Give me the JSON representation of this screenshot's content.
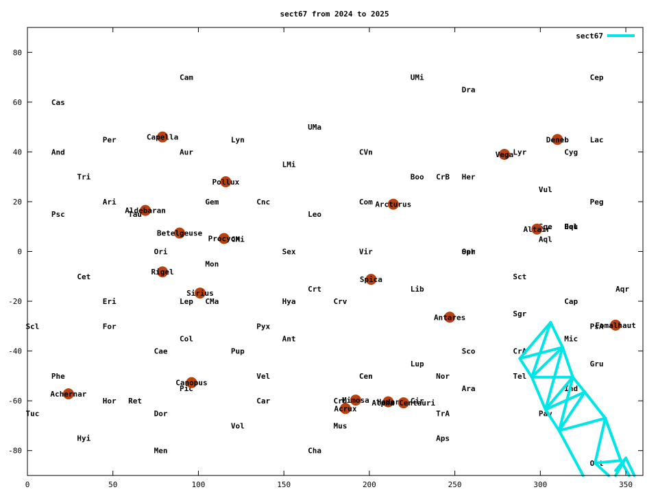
{
  "chart_data": {
    "type": "scatter",
    "title": "sect67 from 2024 to 2025",
    "xlabel": "",
    "ylabel": "",
    "xlim": [
      0,
      360
    ],
    "ylim": [
      -90,
      90
    ],
    "xticks": [
      0,
      50,
      100,
      150,
      200,
      250,
      300,
      350
    ],
    "yticks": [
      -80,
      -60,
      -40,
      -20,
      0,
      20,
      40,
      60,
      80
    ],
    "grid": false,
    "legend_position": "top-right",
    "colors": {
      "stars": "#b8410f",
      "series": "#00e5e5",
      "text": "#000000",
      "axes": "#000000"
    },
    "constellations": [
      {
        "label": "Cam",
        "x": 89,
        "y": 70
      },
      {
        "label": "UMi",
        "x": 224,
        "y": 70
      },
      {
        "label": "Cep",
        "x": 329,
        "y": 70
      },
      {
        "label": "Dra",
        "x": 254,
        "y": 65
      },
      {
        "label": "Cas",
        "x": 14,
        "y": 60
      },
      {
        "label": "UMa",
        "x": 164,
        "y": 50
      },
      {
        "label": "Per",
        "x": 44,
        "y": 45
      },
      {
        "label": "Lyn",
        "x": 119,
        "y": 45
      },
      {
        "label": "Lac",
        "x": 329,
        "y": 45
      },
      {
        "label": "And",
        "x": 14,
        "y": 40
      },
      {
        "label": "Aur",
        "x": 89,
        "y": 40
      },
      {
        "label": "CVn",
        "x": 194,
        "y": 40
      },
      {
        "label": "Lyr",
        "x": 284,
        "y": 40
      },
      {
        "label": "Cyg",
        "x": 314,
        "y": 40
      },
      {
        "label": "LMi",
        "x": 149,
        "y": 35
      },
      {
        "label": "Tri",
        "x": 29,
        "y": 30
      },
      {
        "label": "Boo",
        "x": 224,
        "y": 30
      },
      {
        "label": "CrB",
        "x": 239,
        "y": 30
      },
      {
        "label": "Her",
        "x": 254,
        "y": 30
      },
      {
        "label": "Vul",
        "x": 299,
        "y": 25
      },
      {
        "label": "Ari",
        "x": 44,
        "y": 20
      },
      {
        "label": "Gem",
        "x": 104,
        "y": 20
      },
      {
        "label": "Cnc",
        "x": 134,
        "y": 20
      },
      {
        "label": "Com",
        "x": 194,
        "y": 20
      },
      {
        "label": "Peg",
        "x": 329,
        "y": 20
      },
      {
        "label": "Psc",
        "x": 14,
        "y": 15
      },
      {
        "label": "Tau",
        "x": 59,
        "y": 15
      },
      {
        "label": "Leo",
        "x": 164,
        "y": 15
      },
      {
        "label": "Sge",
        "x": 299,
        "y": 10
      },
      {
        "label": "Del",
        "x": 314,
        "y": 10
      },
      {
        "label": "Equ",
        "x": 314,
        "y": 10
      },
      {
        "label": "CMi",
        "x": 119,
        "y": 5
      },
      {
        "label": "Aql",
        "x": 299,
        "y": 5
      },
      {
        "label": "Ori",
        "x": 74,
        "y": 0
      },
      {
        "label": "Sex",
        "x": 149,
        "y": 0
      },
      {
        "label": "Vir",
        "x": 194,
        "y": 0
      },
      {
        "label": "Oph",
        "x": 254,
        "y": 0
      },
      {
        "label": "Ser",
        "x": 254,
        "y": 0
      },
      {
        "label": "Mon",
        "x": 104,
        "y": -5
      },
      {
        "label": "Cet",
        "x": 29,
        "y": -10
      },
      {
        "label": "Sct",
        "x": 284,
        "y": -10
      },
      {
        "label": "Crt",
        "x": 164,
        "y": -15
      },
      {
        "label": "Lib",
        "x": 224,
        "y": -15
      },
      {
        "label": "Aqr",
        "x": 344,
        "y": -15
      },
      {
        "label": "Eri",
        "x": 44,
        "y": -20
      },
      {
        "label": "Lep",
        "x": 89,
        "y": -20
      },
      {
        "label": "CMa",
        "x": 104,
        "y": -20
      },
      {
        "label": "Hya",
        "x": 149,
        "y": -20
      },
      {
        "label": "Crv",
        "x": 179,
        "y": -20
      },
      {
        "label": "Cap",
        "x": 314,
        "y": -20
      },
      {
        "label": "Sgr",
        "x": 284,
        "y": -25
      },
      {
        "label": "Scl",
        "x": -1,
        "y": -30
      },
      {
        "label": "For",
        "x": 44,
        "y": -30
      },
      {
        "label": "Pyx",
        "x": 134,
        "y": -30
      },
      {
        "label": "PsA",
        "x": 329,
        "y": -30
      },
      {
        "label": "Col",
        "x": 89,
        "y": -35
      },
      {
        "label": "Ant",
        "x": 149,
        "y": -35
      },
      {
        "label": "Mic",
        "x": 314,
        "y": -35
      },
      {
        "label": "Cae",
        "x": 74,
        "y": -40
      },
      {
        "label": "Pup",
        "x": 119,
        "y": -40
      },
      {
        "label": "Sco",
        "x": 254,
        "y": -40
      },
      {
        "label": "CrA",
        "x": 284,
        "y": -40
      },
      {
        "label": "Gru",
        "x": 329,
        "y": -45
      },
      {
        "label": "Lup",
        "x": 224,
        "y": -45
      },
      {
        "label": "Phe",
        "x": 14,
        "y": -50
      },
      {
        "label": "Vel",
        "x": 134,
        "y": -50
      },
      {
        "label": "Cen",
        "x": 194,
        "y": -50
      },
      {
        "label": "Nor",
        "x": 239,
        "y": -50
      },
      {
        "label": "Tel",
        "x": 284,
        "y": -50
      },
      {
        "label": "Pic",
        "x": 89,
        "y": -55
      },
      {
        "label": "Ara",
        "x": 254,
        "y": -55
      },
      {
        "label": "Ind",
        "x": 314,
        "y": -55
      },
      {
        "label": "Hor",
        "x": 44,
        "y": -60
      },
      {
        "label": "Ret",
        "x": 59,
        "y": -60
      },
      {
        "label": "Car",
        "x": 134,
        "y": -60
      },
      {
        "label": "Cru",
        "x": 179,
        "y": -60
      },
      {
        "label": "Cir",
        "x": 224,
        "y": -60
      },
      {
        "label": "Tuc",
        "x": -1,
        "y": -65
      },
      {
        "label": "Dor",
        "x": 74,
        "y": -65
      },
      {
        "label": "TrA",
        "x": 239,
        "y": -65
      },
      {
        "label": "Pav",
        "x": 299,
        "y": -65
      },
      {
        "label": "Vol",
        "x": 119,
        "y": -70
      },
      {
        "label": "Mus",
        "x": 179,
        "y": -70
      },
      {
        "label": "Hyi",
        "x": 29,
        "y": -75
      },
      {
        "label": "Aps",
        "x": 239,
        "y": -75
      },
      {
        "label": "Men",
        "x": 74,
        "y": -80
      },
      {
        "label": "Cha",
        "x": 164,
        "y": -80
      },
      {
        "label": "Oct",
        "x": 329,
        "y": -85
      }
    ],
    "stars": [
      {
        "name": "Capella",
        "x": 79,
        "y": 46
      },
      {
        "name": "Deneb",
        "x": 310,
        "y": 45
      },
      {
        "name": "Vega",
        "x": 279,
        "y": 39
      },
      {
        "name": "Pollux",
        "x": 116,
        "y": 28
      },
      {
        "name": "Arcturus",
        "x": 214,
        "y": 19
      },
      {
        "name": "Aldebaran",
        "x": 69,
        "y": 16.5
      },
      {
        "name": "Altair",
        "x": 298,
        "y": 9
      },
      {
        "name": "Betelgeuse",
        "x": 89,
        "y": 7.4
      },
      {
        "name": "Procyon",
        "x": 115,
        "y": 5.2
      },
      {
        "name": "Rigel",
        "x": 79,
        "y": -8.2
      },
      {
        "name": "Spica",
        "x": 201,
        "y": -11.2
      },
      {
        "name": "Sirius",
        "x": 101,
        "y": -16.7
      },
      {
        "name": "Antares",
        "x": 247,
        "y": -26.4
      },
      {
        "name": "Fomalhaut",
        "x": 344,
        "y": -29.6
      },
      {
        "name": "Canopus",
        "x": 96,
        "y": -52.7
      },
      {
        "name": "Achernar",
        "x": 24,
        "y": -57.2
      },
      {
        "name": "Mimosa",
        "x": 192,
        "y": -59.7
      },
      {
        "name": "Hadar",
        "x": 211,
        "y": -60.4
      },
      {
        "name": "Alpha Centauri",
        "x": 220,
        "y": -60.8
      },
      {
        "name": "Acrux",
        "x": 186,
        "y": -63.1
      }
    ],
    "series": [
      {
        "name": "sect67",
        "segments": [
          [
            [
              288,
              -43
            ],
            [
              306,
              -28.5
            ]
          ],
          [
            [
              306,
              -28.5
            ],
            [
              313,
              -38.5
            ]
          ],
          [
            [
              313,
              -38.5
            ],
            [
              295,
              -50.5
            ]
          ],
          [
            [
              295,
              -50.5
            ],
            [
              288,
              -43
            ]
          ],
          [
            [
              306,
              -28.5
            ],
            [
              295,
              -50.5
            ]
          ],
          [
            [
              288,
              -43
            ],
            [
              313,
              -38.5
            ]
          ],
          [
            [
              295,
              -50.5
            ],
            [
              303,
              -63.5
            ]
          ],
          [
            [
              303,
              -63.5
            ],
            [
              319,
              -50.5
            ]
          ],
          [
            [
              319,
              -50.5
            ],
            [
              313,
              -38.5
            ]
          ],
          [
            [
              313,
              -38.5
            ],
            [
              303,
              -63.5
            ]
          ],
          [
            [
              295,
              -50.5
            ],
            [
              319,
              -50.5
            ]
          ],
          [
            [
              303,
              -63.5
            ],
            [
              311,
              -72
            ]
          ],
          [
            [
              311,
              -72
            ],
            [
              326,
              -56.5
            ]
          ],
          [
            [
              326,
              -56.5
            ],
            [
              319,
              -50.5
            ]
          ],
          [
            [
              319,
              -50.5
            ],
            [
              311,
              -72
            ]
          ],
          [
            [
              303,
              -63.5
            ],
            [
              326,
              -56.5
            ]
          ],
          [
            [
              311,
              -72
            ],
            [
              325,
              -90
            ]
          ],
          [
            [
              326,
              -56.5
            ],
            [
              338,
              -67
            ]
          ],
          [
            [
              338,
              -67
            ],
            [
              311,
              -72
            ]
          ],
          [
            [
              338,
              -67
            ],
            [
              332,
              -85
            ]
          ],
          [
            [
              332,
              -85
            ],
            [
              340,
              -90
            ]
          ],
          [
            [
              332,
              -85
            ],
            [
              347,
              -84
            ]
          ],
          [
            [
              347,
              -84
            ],
            [
              338,
              -67
            ]
          ],
          [
            [
              326,
              -56.5
            ],
            [
              338,
              -67
            ]
          ],
          [
            [
              338,
              -67
            ],
            [
              347,
              -84
            ]
          ],
          [
            [
              347,
              -84
            ],
            [
              352,
              -90
            ]
          ],
          [
            [
              344,
              -88
            ],
            [
              350,
              -83
            ]
          ],
          [
            [
              350,
              -83
            ],
            [
              355,
              -90
            ]
          ],
          [
            [
              344,
              -90
            ],
            [
              350,
              -83
            ]
          ]
        ]
      }
    ]
  }
}
